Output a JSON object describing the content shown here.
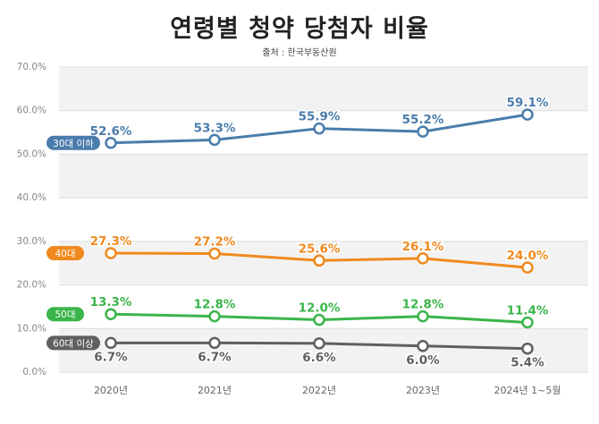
{
  "title": "연령별 청약 당첨자 비율",
  "source": "출처 : 한국부동산원",
  "chart_data": {
    "type": "line",
    "title": "연령별 청약 당첨자 비율",
    "x": [
      "2020년",
      "2021년",
      "2022년",
      "2023년",
      "2024년 1~5월"
    ],
    "ylim": [
      0,
      70
    ],
    "yticks": [
      "0.0%",
      "10.0%",
      "20.0%",
      "30.0%",
      "40.0%",
      "50.0%",
      "60.0%",
      "70.0%"
    ],
    "grid": true,
    "series": [
      {
        "name": "30대 이하",
        "color": "#4a7cac",
        "values": [
          52.6,
          53.3,
          55.9,
          55.2,
          59.1
        ],
        "labels": [
          "52.6%",
          "53.3%",
          "55.9%",
          "55.2%",
          "59.1%"
        ],
        "label_pos": "above"
      },
      {
        "name": "40대",
        "color": "#f08a1f",
        "values": [
          27.3,
          27.2,
          25.6,
          26.1,
          24.0
        ],
        "labels": [
          "27.3%",
          "27.2%",
          "25.6%",
          "26.1%",
          "24.0%"
        ],
        "label_pos": "above"
      },
      {
        "name": "50대",
        "color": "#3ab54a",
        "values": [
          13.3,
          12.8,
          12.0,
          12.8,
          11.4
        ],
        "labels": [
          "13.3%",
          "12.8%",
          "12.0%",
          "12.8%",
          "11.4%"
        ],
        "label_pos": "above"
      },
      {
        "name": "60대 이상",
        "color": "#5f5f5f",
        "values": [
          6.7,
          6.7,
          6.6,
          6.0,
          5.4
        ],
        "labels": [
          "6.7%",
          "6.7%",
          "6.6%",
          "6.0%",
          "5.4%"
        ],
        "label_pos": "below"
      }
    ]
  }
}
